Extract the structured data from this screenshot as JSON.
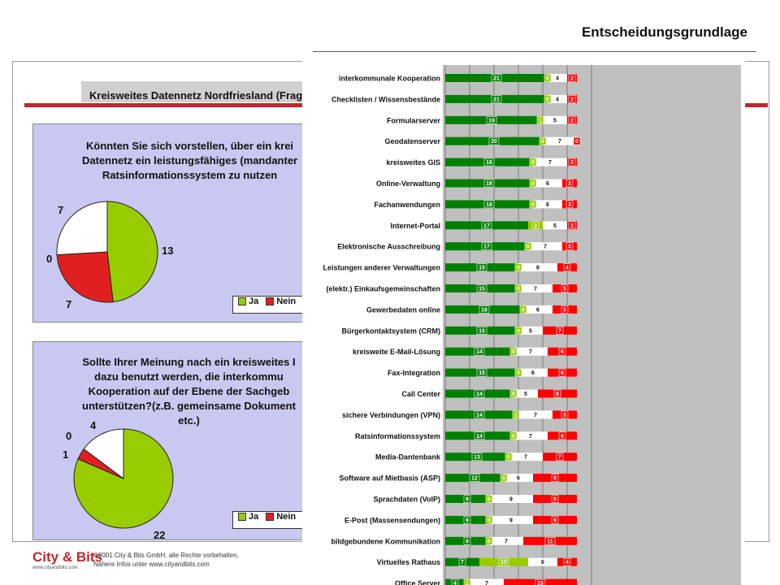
{
  "header": {
    "title": "Entscheidungsgrundlage"
  },
  "back_slide": {
    "subtitle": "Kreisweites Datennetz Nordfriesland (Frage",
    "q1": {
      "text": "Könnten Sie sich vorstellen, über ein krei\nDatennetz ein leistungsfähiges (mandanter\nRatsinformationssystem zu nutzen",
      "slices": [
        {
          "label": "13",
          "value": 13,
          "color": "#99cc00"
        },
        {
          "label": "7",
          "value": 7,
          "color": "#e02020"
        },
        {
          "label": "0",
          "value": 0,
          "color": "#ffff00"
        },
        {
          "label": "7",
          "value": 7,
          "color": "#ffffff"
        }
      ],
      "legend": [
        "Ja",
        "Nein"
      ]
    },
    "q2": {
      "text": "Sollte Ihrer Meinung nach ein kreisweites I\ndazu benutzt werden, die interkommu\nKooperation auf der Ebene der Sachgeb\nunterstützen?(z.B. gemeinsame Dokument\netc.)",
      "slices": [
        {
          "label": "22",
          "value": 22,
          "color": "#99cc00"
        },
        {
          "label": "1",
          "value": 1,
          "color": "#e02020"
        },
        {
          "label": "0",
          "value": 0,
          "color": "#ffff00"
        },
        {
          "label": "4",
          "value": 4,
          "color": "#ffffff"
        }
      ],
      "legend": [
        "Ja",
        "Nein"
      ]
    },
    "footer": {
      "logo": "City & Bits",
      "logo_url": "www.cityandbits.com",
      "line1": "©2001 City & Bits GmbH, alle Rechte vorbehalten,",
      "line2": "Nähere Infos unter www.cityandbits.com"
    }
  },
  "colors": {
    "dark_green": "#008000",
    "light_green": "#99cc00",
    "white": "#ffffff",
    "red": "#ff0000",
    "plot_bg": "#c0c0c0",
    "accent_red": "#c0262e"
  },
  "chart_data": {
    "type": "bar",
    "stacked": true,
    "orientation": "horizontal",
    "grid": true,
    "categories": [
      "interkommunale Kooperation",
      "Checklisten / Wissensbestände",
      "Formularserver",
      "Geodatenserver",
      "kreisweites GIS",
      "Online-Verwaltung",
      "Fachanwendungen",
      "Internet-Portal",
      "Elektronische Ausschreibung",
      "Leistungen anderer Verwaltungen",
      "(elektr.) Einkaufsgemeinschaften",
      "Gewerbedaten online",
      "Bürgerkontaktsystem (CRM)",
      "kreisweite E-Mail-Lösung",
      "Fax-Integration",
      "Call Center",
      "sichere Verbindungen (VPN)",
      "Ratsinformationssystem",
      "Media-Dantenbank",
      "Software auf Mietbasis (ASP)",
      "Sprachdaten (VoIP)",
      "E-Post (Massensendungen)",
      "bildgebundene Kommunikation",
      "Virtuelles Rathaus",
      "Office Server"
    ],
    "series": [
      {
        "color": "#008000",
        "values": [
          21,
          21,
          19,
          20,
          18,
          18,
          18,
          17,
          17,
          15,
          15,
          16,
          15,
          14,
          15,
          14,
          14,
          14,
          13,
          12,
          9,
          9,
          9,
          7,
          4
        ]
      },
      {
        "color": "#99cc00",
        "values": [
          0,
          0,
          1,
          0,
          0,
          0,
          0,
          3,
          0,
          0,
          0,
          0,
          0,
          0,
          0,
          0,
          1,
          0,
          0,
          0,
          0,
          0,
          0,
          10,
          1
        ]
      },
      {
        "color": "#ffffff",
        "values": [
          4,
          4,
          5,
          7,
          7,
          6,
          6,
          5,
          7,
          8,
          7,
          6,
          5,
          7,
          6,
          5,
          7,
          7,
          7,
          6,
          9,
          9,
          7,
          6,
          7
        ]
      },
      {
        "color": "#ff0000",
        "values": [
          2,
          2,
          2,
          0,
          2,
          3,
          3,
          2,
          3,
          4,
          5,
          5,
          7,
          6,
          6,
          8,
          5,
          6,
          7,
          9,
          9,
          9,
          11,
          4,
          15
        ]
      }
    ]
  }
}
